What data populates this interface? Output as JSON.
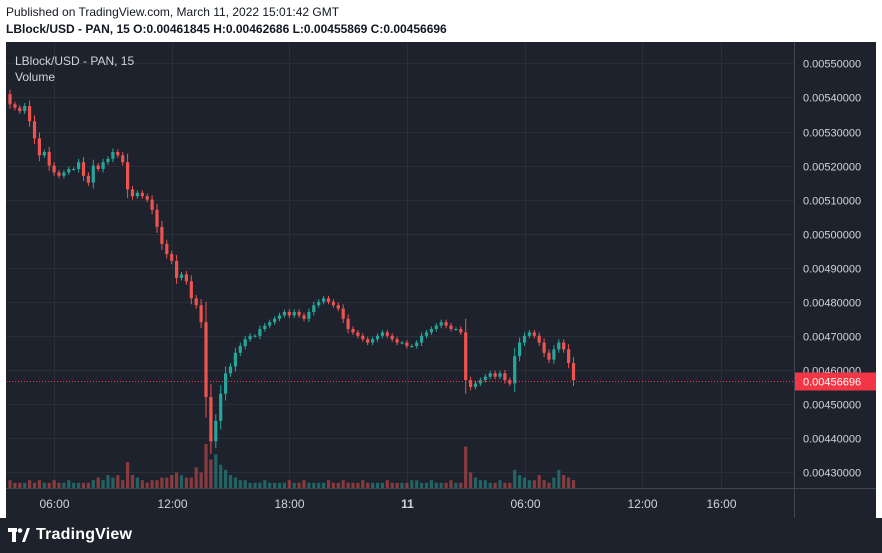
{
  "header": {
    "published": "Published on TradingView.com, March 11, 2022 15:01:42 GMT",
    "ohlc": "LBlock/USD - PAN, 15 O:0.00461845 H:0.00462686 L:0.00455869 C:0.00456696"
  },
  "legend": {
    "symbol": "LBlock/USD - PAN, 15",
    "volume_label": "Volume"
  },
  "footer": {
    "brand": "TradingView"
  },
  "colors": {
    "up": "#26a69a",
    "down": "#ef5350",
    "background": "#1e222d",
    "grid": "#2a2e39",
    "text": "#d1d4dc",
    "last_price": "#f23645"
  },
  "chart_data": {
    "type": "candlestick",
    "symbol": "LBlock/USD - PAN, 15",
    "y_ticks": [
      "0.00430000",
      "0.00440000",
      "0.00450000",
      "0.00460000",
      "0.00470000",
      "0.00480000",
      "0.00490000",
      "0.00500000",
      "0.00510000",
      "0.00520000",
      "0.00530000",
      "0.00540000",
      "0.00550000"
    ],
    "ylim": [
      0.004253,
      0.005563
    ],
    "x_ticks": [
      {
        "label": "06:00",
        "i": 9
      },
      {
        "label": "12:00",
        "i": 33
      },
      {
        "label": "18:00",
        "i": 57
      },
      {
        "label": "11",
        "i": 81
      },
      {
        "label": "06:00",
        "i": 105
      },
      {
        "label": "12:00",
        "i": 129
      },
      {
        "label": "16:00",
        "i": 145
      }
    ],
    "last_price": "0.00456696",
    "close": [
      0.00538,
      0.00537,
      0.00536,
      0.005375,
      0.00533,
      0.00528,
      0.00523,
      0.00524,
      0.0052,
      0.00518,
      0.00517,
      0.00518,
      0.00519,
      0.00519,
      0.00521,
      0.00517,
      0.00515,
      0.0052,
      0.00519,
      0.00521,
      0.00522,
      0.00524,
      0.00523,
      0.00521,
      0.00513,
      0.00511,
      0.00512,
      0.00511,
      0.0051,
      0.00507,
      0.00502,
      0.00497,
      0.00494,
      0.00492,
      0.00487,
      0.00488,
      0.00486,
      0.00481,
      0.00479,
      0.00474,
      0.00452,
      0.00439,
      0.00445,
      0.00453,
      0.00459,
      0.00461,
      0.00465,
      0.00467,
      0.00469,
      0.0047,
      0.0047,
      0.00472,
      0.00473,
      0.00474,
      0.00475,
      0.00476,
      0.00477,
      0.00476,
      0.00477,
      0.00476,
      0.00475,
      0.00477,
      0.00479,
      0.0048,
      0.00481,
      0.0048,
      0.00479,
      0.00478,
      0.00475,
      0.00472,
      0.00471,
      0.0047,
      0.00469,
      0.00468,
      0.00469,
      0.0047,
      0.00471,
      0.0047,
      0.00469,
      0.00468,
      0.00468,
      0.00467,
      0.00467,
      0.00468,
      0.0047,
      0.00471,
      0.00472,
      0.00473,
      0.00474,
      0.00473,
      0.00472,
      0.00472,
      0.00471,
      0.00457,
      0.00455,
      0.00456,
      0.00457,
      0.00458,
      0.00459,
      0.00458,
      0.00459,
      0.00457,
      0.00456,
      0.00464,
      0.00468,
      0.0047,
      0.00471,
      0.0047,
      0.00468,
      0.00465,
      0.00463,
      0.00466,
      0.00468,
      0.00466,
      0.00462,
      0.00457
    ],
    "volume": [
      3,
      2,
      2,
      2,
      3,
      2,
      3,
      2,
      2,
      3,
      2,
      2,
      3,
      2,
      2,
      2,
      2,
      3,
      4,
      3,
      5,
      4,
      5,
      3,
      10,
      5,
      4,
      3,
      2,
      3,
      3,
      4,
      4,
      5,
      6,
      5,
      4,
      4,
      8,
      6,
      17,
      11,
      13,
      9,
      7,
      5,
      4,
      3,
      3,
      2,
      2,
      2,
      3,
      2,
      2,
      2,
      2,
      3,
      2,
      2,
      3,
      2,
      2,
      2,
      2,
      3,
      2,
      2,
      3,
      2,
      2,
      2,
      3,
      2,
      2,
      2,
      2,
      3,
      2,
      2,
      2,
      2,
      3,
      3,
      2,
      2,
      3,
      2,
      2,
      2,
      3,
      2,
      2,
      16,
      6,
      4,
      3,
      3,
      2,
      2,
      3,
      2,
      2,
      7,
      5,
      4,
      3,
      3,
      5,
      3,
      2,
      4,
      7,
      5,
      4,
      3
    ]
  }
}
